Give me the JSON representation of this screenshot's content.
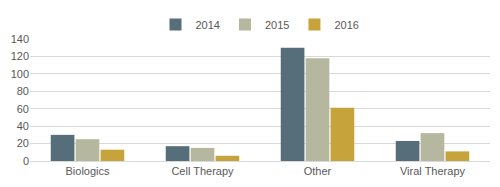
{
  "chart_data": {
    "type": "bar",
    "categories": [
      "Biologics",
      "Cell Therapy",
      "Other",
      "Viral Therapy"
    ],
    "series": [
      {
        "name": "2014",
        "color": "#566e7a",
        "values": [
          30,
          17,
          130,
          23
        ]
      },
      {
        "name": "2015",
        "color": "#b5b89f",
        "values": [
          25,
          15,
          118,
          32
        ]
      },
      {
        "name": "2016",
        "color": "#c7a43b",
        "values": [
          13,
          6,
          61,
          11
        ]
      }
    ],
    "ylim": [
      0,
      140
    ],
    "yticks": [
      0,
      20,
      40,
      60,
      80,
      100,
      120,
      140
    ],
    "grid": true,
    "legend": "top"
  }
}
